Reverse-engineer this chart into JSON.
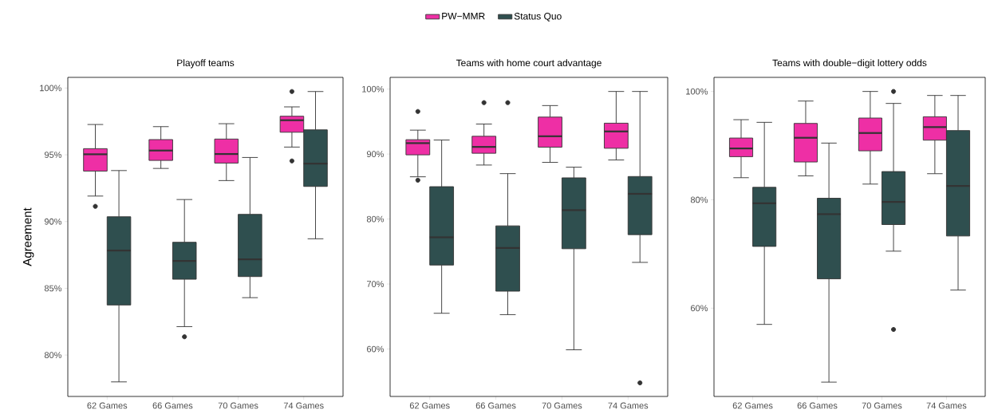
{
  "chart_data": [
    {
      "type": "box",
      "title": "Playoff teams",
      "ylabel": "Agreement",
      "legend": "top",
      "categories": [
        "62 Games",
        "66 Games",
        "70 Games",
        "74 Games"
      ],
      "series": [
        {
          "name": "PW−MMR",
          "color": "#ee2fa5",
          "boxes": [
            {
              "low": 91.91,
              "q1": 93.78,
              "median": 95.04,
              "q3": 95.46,
              "high": 97.27,
              "outliers": [
                91.14
              ]
            },
            {
              "low": 93.98,
              "q1": 94.58,
              "median": 95.32,
              "q3": 96.14,
              "high": 97.11
            },
            {
              "low": 93.07,
              "q1": 94.38,
              "median": 95.06,
              "q3": 96.18,
              "high": 97.33
            },
            {
              "low": 95.58,
              "q1": 96.69,
              "median": 97.59,
              "q3": 97.89,
              "high": 98.59,
              "outliers": [
                99.74,
                94.54
              ]
            }
          ]
        },
        {
          "name": "Status Quo",
          "color": "#2f4f4f",
          "boxes": [
            {
              "low": 77.99,
              "q1": 83.75,
              "median": 87.83,
              "q3": 90.36,
              "high": 93.82
            },
            {
              "low": 82.13,
              "q1": 85.68,
              "median": 87.05,
              "q3": 88.45,
              "high": 91.65,
              "outliers": [
                81.37
              ]
            },
            {
              "low": 84.3,
              "q1": 85.88,
              "median": 87.17,
              "q3": 90.54,
              "high": 94.8
            },
            {
              "low": 88.71,
              "q1": 92.63,
              "median": 94.34,
              "q3": 96.87,
              "high": 99.74
            }
          ]
        }
      ],
      "ylim": [
        76.9,
        100.8
      ],
      "yticks": [
        {
          "value": 80,
          "label": "80%"
        },
        {
          "value": 85,
          "label": "85%"
        },
        {
          "value": 90,
          "label": "90%"
        },
        {
          "value": 95,
          "label": "95%"
        },
        {
          "value": 100,
          "label": "100%"
        }
      ]
    },
    {
      "type": "box",
      "title": "Teams with home court advantage",
      "categories": [
        "62 Games",
        "66 Games",
        "70 Games",
        "74 Games"
      ],
      "series": [
        {
          "color": "#ee2fa5",
          "boxes": [
            {
              "low": 86.5,
              "q1": 89.88,
              "median": 91.68,
              "q3": 92.21,
              "high": 93.68,
              "outliers": [
                96.55,
                85.98
              ]
            },
            {
              "low": 88.31,
              "q1": 90.12,
              "median": 91.1,
              "q3": 92.74,
              "high": 94.62,
              "outliers": [
                97.91
              ]
            },
            {
              "low": 88.72,
              "q1": 91.06,
              "median": 92.74,
              "q3": 95.69,
              "high": 97.46
            },
            {
              "low": 89.09,
              "q1": 90.89,
              "median": 93.48,
              "q3": 94.75,
              "high": 99.63
            }
          ]
        },
        {
          "color": "#2f4f4f",
          "boxes": [
            {
              "low": 65.5,
              "q1": 72.92,
              "median": 77.19,
              "q3": 84.98,
              "high": 92.16
            },
            {
              "low": 65.29,
              "q1": 68.9,
              "median": 75.55,
              "q3": 78.95,
              "high": 86.99,
              "outliers": [
                97.91
              ]
            },
            {
              "low": 59.88,
              "q1": 75.43,
              "median": 81.37,
              "q3": 86.34,
              "high": 87.98
            },
            {
              "low": 73.33,
              "q1": 77.6,
              "median": 83.88,
              "q3": 86.54,
              "high": 99.63,
              "outliers": [
                54.79
              ]
            }
          ]
        }
      ],
      "ylim": [
        52.7,
        101.8
      ],
      "yticks": [
        {
          "value": 60,
          "label": "60%"
        },
        {
          "value": 70,
          "label": "70%"
        },
        {
          "value": 80,
          "label": "80%"
        },
        {
          "value": 90,
          "label": "90%"
        },
        {
          "value": 100,
          "label": "100%"
        }
      ]
    },
    {
      "type": "box",
      "title": "Teams with double−digit lottery odds",
      "categories": [
        "62 Games",
        "66 Games",
        "70 Games",
        "74 Games"
      ],
      "series": [
        {
          "color": "#ee2fa5",
          "boxes": [
            {
              "low": 84.08,
              "q1": 87.96,
              "median": 89.48,
              "q3": 91.4,
              "high": 94.79
            },
            {
              "low": 84.42,
              "q1": 86.98,
              "median": 91.45,
              "q3": 94.1,
              "high": 98.23
            },
            {
              "low": 82.9,
              "q1": 89.04,
              "median": 92.33,
              "q3": 95.09,
              "high": 100
            },
            {
              "low": 84.82,
              "q1": 91.01,
              "median": 93.42,
              "q3": 95.33,
              "high": 99.26
            }
          ]
        },
        {
          "color": "#2f4f4f",
          "boxes": [
            {
              "low": 57.0,
              "q1": 71.4,
              "median": 79.36,
              "q3": 82.31,
              "high": 94.3
            },
            {
              "low": 46.34,
              "q1": 65.41,
              "median": 77.35,
              "q3": 80.29,
              "high": 90.47
            },
            {
              "low": 70.52,
              "q1": 75.43,
              "median": 79.61,
              "q3": 85.21,
              "high": 97.79,
              "outliers": [
                100,
                56.07
              ]
            },
            {
              "low": 63.34,
              "q1": 73.32,
              "median": 82.56,
              "q3": 92.78,
              "high": 99.26
            }
          ]
        }
      ],
      "ylim": [
        43.7,
        102.6
      ],
      "yticks": [
        {
          "value": 60,
          "label": "60%"
        },
        {
          "value": 80,
          "label": "80%"
        },
        {
          "value": 100,
          "label": "100%"
        }
      ]
    }
  ]
}
